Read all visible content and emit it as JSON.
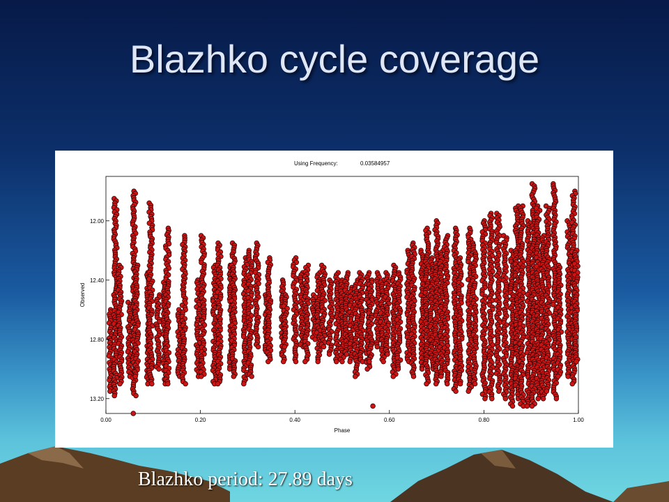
{
  "slide": {
    "title": "Blazhko cycle coverage",
    "caption": "Blazhko period: 27.89 days"
  },
  "colors": {
    "marker_fill": "#cc1414",
    "marker_stroke": "#200000",
    "chart_background": "#ffffff"
  },
  "chart_data": {
    "type": "scatter",
    "title": "Using Frequency:",
    "frequency": "0.03584957",
    "xlabel": "Phase",
    "ylabel": "Observed",
    "xlim": [
      0.0,
      1.0
    ],
    "ylim": [
      13.3,
      11.7
    ],
    "y_inverted": true,
    "x_ticks": [
      "0.00",
      "0.20",
      "0.40",
      "0.60",
      "0.80",
      "1.00"
    ],
    "x_tick_values": [
      0.0,
      0.2,
      0.4,
      0.6,
      0.8,
      1.0
    ],
    "y_ticks": [
      "12.00",
      "12.40",
      "12.80",
      "13.20"
    ],
    "y_tick_values": [
      12.0,
      12.4,
      12.8,
      13.2
    ],
    "grid": false,
    "marker": "circle",
    "columns": [
      [
        0.01,
        12.6,
        13.15
      ],
      [
        0.02,
        11.85,
        13.18
      ],
      [
        0.03,
        12.3,
        13.1
      ],
      [
        0.05,
        12.55,
        13.05
      ],
      [
        0.06,
        11.8,
        13.18
      ],
      [
        0.065,
        12.3,
        13.05
      ],
      [
        0.09,
        12.35,
        13.1
      ],
      [
        0.095,
        11.88,
        13.1
      ],
      [
        0.11,
        12.5,
        13.0
      ],
      [
        0.125,
        12.4,
        13.1
      ],
      [
        0.13,
        12.05,
        13.1
      ],
      [
        0.155,
        12.6,
        13.05
      ],
      [
        0.165,
        12.1,
        13.1
      ],
      [
        0.195,
        12.4,
        13.05
      ],
      [
        0.205,
        12.1,
        13.05
      ],
      [
        0.23,
        12.3,
        13.1
      ],
      [
        0.24,
        12.15,
        13.1
      ],
      [
        0.265,
        12.3,
        13.0
      ],
      [
        0.27,
        12.15,
        13.05
      ],
      [
        0.295,
        12.25,
        13.1
      ],
      [
        0.305,
        12.2,
        13.05
      ],
      [
        0.32,
        12.15,
        12.85
      ],
      [
        0.34,
        12.5,
        12.9
      ],
      [
        0.345,
        12.25,
        12.95
      ],
      [
        0.375,
        12.4,
        12.95
      ],
      [
        0.38,
        12.5,
        12.85
      ],
      [
        0.4,
        12.25,
        12.95
      ],
      [
        0.415,
        12.35,
        12.85
      ],
      [
        0.425,
        12.3,
        12.95
      ],
      [
        0.44,
        12.5,
        12.8
      ],
      [
        0.45,
        12.35,
        12.95
      ],
      [
        0.46,
        12.3,
        12.85
      ],
      [
        0.475,
        12.4,
        12.9
      ],
      [
        0.49,
        12.35,
        12.95
      ],
      [
        0.5,
        12.4,
        12.95
      ],
      [
        0.51,
        12.35,
        12.9
      ],
      [
        0.52,
        12.45,
        12.95
      ],
      [
        0.53,
        12.4,
        13.05
      ],
      [
        0.54,
        12.35,
        12.95
      ],
      [
        0.555,
        12.35,
        13.0
      ],
      [
        0.56,
        12.4,
        12.95
      ],
      [
        0.575,
        12.35,
        12.85
      ],
      [
        0.585,
        12.4,
        12.95
      ],
      [
        0.595,
        12.35,
        12.9
      ],
      [
        0.61,
        12.3,
        13.05
      ],
      [
        0.62,
        12.35,
        13.0
      ],
      [
        0.64,
        12.2,
        12.95
      ],
      [
        0.65,
        12.15,
        13.05
      ],
      [
        0.67,
        12.2,
        13.0
      ],
      [
        0.68,
        12.05,
        13.1
      ],
      [
        0.69,
        12.25,
        13.0
      ],
      [
        0.7,
        12.0,
        13.1
      ],
      [
        0.71,
        12.2,
        13.05
      ],
      [
        0.72,
        12.1,
        13.1
      ],
      [
        0.74,
        12.05,
        13.15
      ],
      [
        0.75,
        12.25,
        13.1
      ],
      [
        0.77,
        12.05,
        13.15
      ],
      [
        0.78,
        12.15,
        13.1
      ],
      [
        0.8,
        12.0,
        13.2
      ],
      [
        0.815,
        11.95,
        13.2
      ],
      [
        0.83,
        11.95,
        13.15
      ],
      [
        0.845,
        12.1,
        13.2
      ],
      [
        0.86,
        12.2,
        13.25
      ],
      [
        0.87,
        11.9,
        13.2
      ],
      [
        0.88,
        11.9,
        13.25
      ],
      [
        0.895,
        12.0,
        13.25
      ],
      [
        0.905,
        11.75,
        13.25
      ],
      [
        0.915,
        11.9,
        13.2
      ],
      [
        0.925,
        12.1,
        13.2
      ],
      [
        0.935,
        11.9,
        13.15
      ],
      [
        0.95,
        11.75,
        13.2
      ],
      [
        0.96,
        12.3,
        13.05
      ],
      [
        0.98,
        12.0,
        13.05
      ],
      [
        0.99,
        11.8,
        13.1
      ],
      [
        0.995,
        12.2,
        12.95
      ]
    ],
    "outliers": [
      [
        0.058,
        13.3
      ],
      [
        0.565,
        13.25
      ]
    ]
  }
}
